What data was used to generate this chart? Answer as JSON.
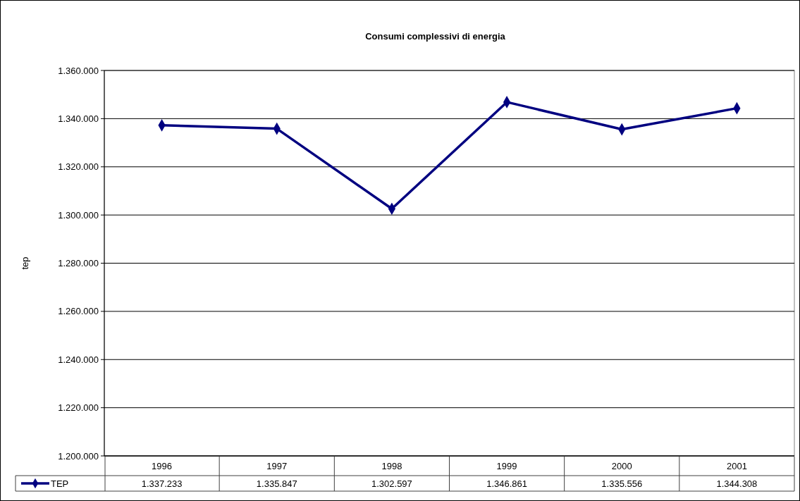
{
  "chart_data": {
    "type": "line",
    "title": "Consumi complessivi di energia",
    "ylabel": "tep",
    "categories": [
      "1996",
      "1997",
      "1998",
      "1999",
      "2000",
      "2001"
    ],
    "series": [
      {
        "name": "TEP",
        "color": "#000080",
        "values": [
          1337233,
          1335847,
          1302597,
          1346861,
          1335556,
          1344308
        ],
        "value_labels": [
          "1.337.233",
          "1.335.847",
          "1.302.597",
          "1.346.861",
          "1.335.556",
          "1.344.308"
        ]
      }
    ],
    "ylim": [
      1200000,
      1360000
    ],
    "yticks": [
      {
        "value": 1200000,
        "label": "1.200.000"
      },
      {
        "value": 1220000,
        "label": "1.220.000"
      },
      {
        "value": 1240000,
        "label": "1.240.000"
      },
      {
        "value": 1260000,
        "label": "1.260.000"
      },
      {
        "value": 1280000,
        "label": "1.280.000"
      },
      {
        "value": 1300000,
        "label": "1.300.000"
      },
      {
        "value": 1320000,
        "label": "1.320.000"
      },
      {
        "value": 1340000,
        "label": "1.340.000"
      },
      {
        "value": 1360000,
        "label": "1.360.000"
      }
    ],
    "grid": "y",
    "legend": "bottom",
    "marker": "diamond",
    "line_style": "solid"
  }
}
